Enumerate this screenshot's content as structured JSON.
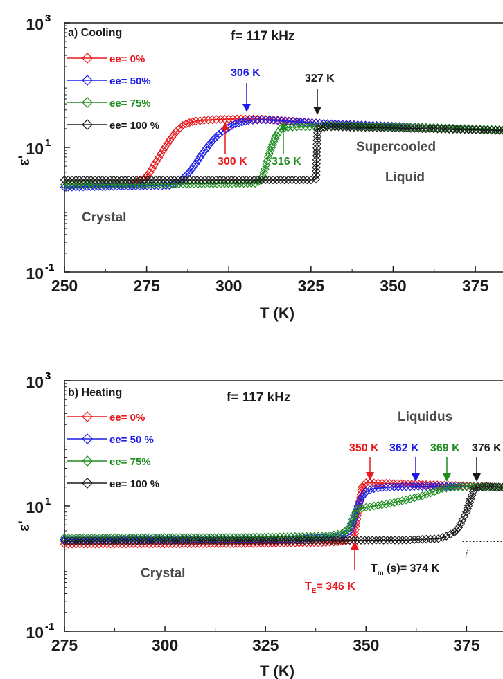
{
  "chart_data": [
    {
      "type": "line",
      "panel_label": "a) Cooling",
      "frequency_label": "f= 117 kHz",
      "xlabel": "T (K)",
      "ylabel": "ε'",
      "xlim": [
        250,
        387
      ],
      "ylim": [
        0.1,
        1000
      ],
      "yscale": "log",
      "x_ticks": [
        250,
        275,
        300,
        325,
        350,
        375
      ],
      "x_tick_labels": [
        "250",
        "275",
        "300",
        "325",
        "350",
        "375"
      ],
      "y_ticks": [
        {
          "value": 0.1,
          "base": "10",
          "exp": "-1"
        },
        {
          "value": 10,
          "base": "10",
          "exp": "1"
        },
        {
          "value": 1000,
          "base": "10",
          "exp": "3"
        }
      ],
      "grid": false,
      "legend_position": "top-left",
      "series": [
        {
          "name": "ee= 0%",
          "color": "#e8191c",
          "marker": "diamond-open",
          "points": [
            [
              250,
              2.5
            ],
            [
              270,
              2.6
            ],
            [
              274,
              3.0
            ],
            [
              276,
              4.0
            ],
            [
              278,
              6.0
            ],
            [
              280,
              9.0
            ],
            [
              282,
              13.0
            ],
            [
              284,
              18.0
            ],
            [
              286,
              22.5
            ],
            [
              288,
              25.0
            ],
            [
              290,
              26.5
            ],
            [
              295,
              28.0
            ],
            [
              300,
              28.5
            ],
            [
              305,
              28.8
            ],
            [
              310,
              28.5
            ],
            [
              330,
              24.0
            ],
            [
              360,
              21.0
            ],
            [
              387,
              18.5
            ]
          ]
        },
        {
          "name": "ee= 50%",
          "color": "#1c1ce8",
          "marker": "diamond-open",
          "points": [
            [
              250,
              2.3
            ],
            [
              282,
              2.45
            ],
            [
              285,
              2.8
            ],
            [
              288,
              4.0
            ],
            [
              290,
              5.5
            ],
            [
              292,
              8.0
            ],
            [
              294,
              11.0
            ],
            [
              296,
              14.5
            ],
            [
              298,
              18.0
            ],
            [
              300,
              21.0
            ],
            [
              302,
              24.0
            ],
            [
              304,
              25.5
            ],
            [
              306,
              27.0
            ],
            [
              310,
              28.0
            ],
            [
              315,
              27.0
            ],
            [
              330,
              24.0
            ],
            [
              360,
              21.0
            ],
            [
              387,
              18.8
            ]
          ]
        },
        {
          "name": "ee= 75%",
          "color": "#1e8c1e",
          "marker": "diamond-open",
          "points": [
            [
              250,
              2.5
            ],
            [
              308,
              2.65
            ],
            [
              310,
              3.0
            ],
            [
              311,
              4.5
            ],
            [
              312,
              7.0
            ],
            [
              313,
              10.0
            ],
            [
              314,
              14.0
            ],
            [
              315,
              17.5
            ],
            [
              316,
              20.5
            ],
            [
              318,
              21.0
            ],
            [
              322,
              21.5
            ],
            [
              326,
              21.5
            ],
            [
              330,
              22.5
            ],
            [
              360,
              21.0
            ],
            [
              387,
              19.0
            ]
          ]
        },
        {
          "name": "ee= 100 %",
          "color": "#1a1a1a",
          "marker": "diamond-open",
          "points": [
            [
              250,
              3.0
            ],
            [
              325,
              3.0
            ],
            [
              326.5,
              3.1
            ],
            [
              327,
              20.0
            ],
            [
              330,
              21.5
            ],
            [
              360,
              20.0
            ],
            [
              387,
              18.5
            ]
          ]
        }
      ],
      "annotations": [
        {
          "text": "306 K",
          "color": "#1c1ce8",
          "x": 306
        },
        {
          "text": "327 K",
          "color": "#1a1a1a",
          "x": 327
        },
        {
          "text": "300 K",
          "color": "#e8191c",
          "x": 300
        },
        {
          "text": "316 K",
          "color": "#1e8c1e",
          "x": 316
        },
        {
          "text": "Supercooled"
        },
        {
          "text": "Liquid"
        },
        {
          "text": "Crystal"
        }
      ]
    },
    {
      "type": "line",
      "panel_label": "b) Heating",
      "frequency_label": "f= 117 kHz",
      "xlabel": "T (K)",
      "ylabel": "ε'",
      "xlim": [
        275,
        387
      ],
      "ylim": [
        0.1,
        1000
      ],
      "yscale": "log",
      "x_ticks": [
        275,
        300,
        325,
        350,
        375
      ],
      "x_tick_labels": [
        "275",
        "300",
        "325",
        "350",
        "375"
      ],
      "y_ticks": [
        {
          "value": 0.1,
          "base": "10",
          "exp": "-1"
        },
        {
          "value": 10,
          "base": "10",
          "exp": "1"
        },
        {
          "value": 1000,
          "base": "10",
          "exp": "3"
        }
      ],
      "grid": false,
      "legend_position": "top-left",
      "series": [
        {
          "name": "ee= 0%",
          "color": "#e8191c",
          "marker": "diamond-open",
          "points": [
            [
              275,
              2.45
            ],
            [
              320,
              2.5
            ],
            [
              340,
              2.6
            ],
            [
              344,
              2.7
            ],
            [
              346,
              2.8
            ],
            [
              347,
              3.2
            ],
            [
              348,
              8.0
            ],
            [
              349,
              20.0
            ],
            [
              350,
              23.5
            ],
            [
              355,
              23.0
            ],
            [
              365,
              22.0
            ],
            [
              375,
              21.0
            ],
            [
              387,
              19.5
            ]
          ]
        },
        {
          "name": "ee= 50 %",
          "color": "#1c1ce8",
          "marker": "diamond-open",
          "points": [
            [
              275,
              2.9
            ],
            [
              330,
              3.0
            ],
            [
              340,
              3.1
            ],
            [
              344,
              3.3
            ],
            [
              346,
              4.0
            ],
            [
              347,
              6.0
            ],
            [
              348,
              10.0
            ],
            [
              349,
              14.0
            ],
            [
              350,
              17.0
            ],
            [
              352,
              19.0
            ],
            [
              356,
              20.0
            ],
            [
              362,
              20.5
            ],
            [
              370,
              20.5
            ],
            [
              376,
              20.5
            ],
            [
              387,
              19.5
            ]
          ]
        },
        {
          "name": "ee= 75%",
          "color": "#1e8c1e",
          "marker": "diamond-open",
          "points": [
            [
              275,
              3.1
            ],
            [
              320,
              3.15
            ],
            [
              340,
              3.3
            ],
            [
              344,
              3.6
            ],
            [
              346,
              4.5
            ],
            [
              347,
              7.0
            ],
            [
              348,
              9.0
            ],
            [
              352,
              10.0
            ],
            [
              356,
              11.0
            ],
            [
              360,
              12.5
            ],
            [
              364,
              14.5
            ],
            [
              367,
              17.0
            ],
            [
              369,
              19.0
            ],
            [
              372,
              20.0
            ],
            [
              376,
              20.5
            ],
            [
              387,
              19.5
            ]
          ]
        },
        {
          "name": "ee= 100 %",
          "color": "#1a1a1a",
          "marker": "diamond-open",
          "points": [
            [
              275,
              2.75
            ],
            [
              330,
              2.8
            ],
            [
              360,
              2.85
            ],
            [
              368,
              3.0
            ],
            [
              370,
              3.3
            ],
            [
              372,
              3.8
            ],
            [
              373,
              4.5
            ],
            [
              374,
              6.0
            ],
            [
              375,
              8.0
            ],
            [
              376,
              13.0
            ],
            [
              377,
              19.5
            ],
            [
              380,
              20.5
            ],
            [
              387,
              19.5
            ]
          ]
        }
      ],
      "reference_line": {
        "style": "dotted",
        "y": 2.7,
        "x_from": 374,
        "x_to": 387
      },
      "annotations": [
        {
          "text": "350 K",
          "color": "#e8191c",
          "x": 350
        },
        {
          "text": "362 K",
          "color": "#1c1ce8",
          "x": 362
        },
        {
          "text": "369 K",
          "color": "#1e8c1e",
          "x": 369
        },
        {
          "text": "376 K",
          "color": "#1a1a1a",
          "x": 376
        },
        {
          "text": "Liquidus"
        },
        {
          "text": "Crystal"
        },
        {
          "text": "T",
          "sub": "E",
          "rest": "= 346 K",
          "color": "#e8191c",
          "x": 346
        },
        {
          "text": "T",
          "sub": "m",
          "rest": " (s)= 374 K",
          "color": "#1a1a1a",
          "x": 374
        }
      ]
    }
  ]
}
